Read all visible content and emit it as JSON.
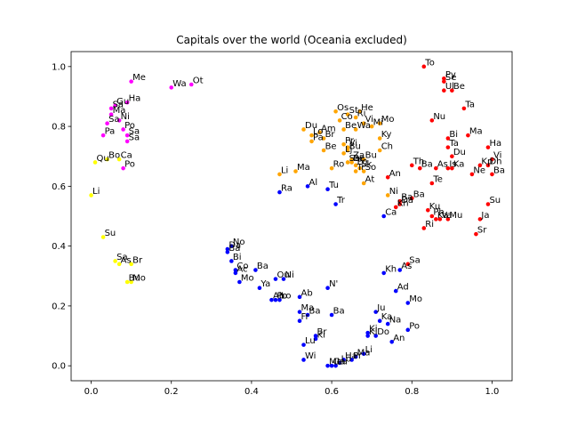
{
  "chart_data": {
    "type": "scatter",
    "title": "Capitals over the world (Oceania excluded)",
    "xlabel": "",
    "ylabel": "",
    "xlim": [
      -0.05,
      1.05
    ],
    "ylim": [
      -0.05,
      1.05
    ],
    "xticks": [
      {
        "v": 0.0,
        "label": "0.0"
      },
      {
        "v": 0.2,
        "label": "0.2"
      },
      {
        "v": 0.4,
        "label": "0.4"
      },
      {
        "v": 0.6,
        "label": "0.6"
      },
      {
        "v": 0.8,
        "label": "0.8"
      },
      {
        "v": 1.0,
        "label": "1.0"
      }
    ],
    "yticks": [
      {
        "v": 0.0,
        "label": "0.0"
      },
      {
        "v": 0.2,
        "label": "0.2"
      },
      {
        "v": 0.4,
        "label": "0.4"
      },
      {
        "v": 0.6,
        "label": "0.6"
      },
      {
        "v": 0.8,
        "label": "0.8"
      },
      {
        "v": 1.0,
        "label": "1.0"
      }
    ],
    "grid": false,
    "colors": {
      "magenta": "#ff00ff",
      "yellow": "#ffff00",
      "orange": "#ffa500",
      "blue": "#0000ff",
      "red": "#ff0000"
    },
    "points": [
      {
        "x": 0.1,
        "y": 0.95,
        "label": "Me",
        "c": "magenta"
      },
      {
        "x": 0.09,
        "y": 0.88,
        "label": "Ha",
        "c": "magenta"
      },
      {
        "x": 0.06,
        "y": 0.87,
        "label": "Gu",
        "c": "magenta"
      },
      {
        "x": 0.05,
        "y": 0.86,
        "label": "Sa",
        "c": "magenta"
      },
      {
        "x": 0.05,
        "y": 0.84,
        "label": "Ma",
        "c": "magenta"
      },
      {
        "x": 0.07,
        "y": 0.82,
        "label": "Ni",
        "c": "magenta"
      },
      {
        "x": 0.04,
        "y": 0.81,
        "label": "Sa",
        "c": "magenta"
      },
      {
        "x": 0.08,
        "y": 0.79,
        "label": "Po",
        "c": "magenta"
      },
      {
        "x": 0.03,
        "y": 0.77,
        "label": "Pa",
        "c": "magenta"
      },
      {
        "x": 0.09,
        "y": 0.77,
        "label": "Sa",
        "c": "magenta"
      },
      {
        "x": 0.09,
        "y": 0.75,
        "label": "Sa",
        "c": "magenta"
      },
      {
        "x": 0.08,
        "y": 0.66,
        "label": "Po",
        "c": "magenta"
      },
      {
        "x": 0.2,
        "y": 0.93,
        "label": "Wa",
        "c": "magenta"
      },
      {
        "x": 0.25,
        "y": 0.94,
        "label": "Ot",
        "c": "magenta"
      },
      {
        "x": 0.04,
        "y": 0.69,
        "label": "Bo",
        "c": "yellow"
      },
      {
        "x": 0.07,
        "y": 0.69,
        "label": "Ca",
        "c": "yellow"
      },
      {
        "x": 0.01,
        "y": 0.68,
        "label": "Qu",
        "c": "yellow"
      },
      {
        "x": 0.0,
        "y": 0.57,
        "label": "Li",
        "c": "yellow"
      },
      {
        "x": 0.03,
        "y": 0.43,
        "label": "Su",
        "c": "yellow"
      },
      {
        "x": 0.06,
        "y": 0.35,
        "label": "Sa",
        "c": "yellow"
      },
      {
        "x": 0.07,
        "y": 0.34,
        "label": "As",
        "c": "yellow"
      },
      {
        "x": 0.1,
        "y": 0.34,
        "label": "Br",
        "c": "yellow"
      },
      {
        "x": 0.09,
        "y": 0.28,
        "label": "Bu",
        "c": "yellow"
      },
      {
        "x": 0.1,
        "y": 0.28,
        "label": "Mo",
        "c": "yellow"
      },
      {
        "x": 0.61,
        "y": 0.85,
        "label": "Os",
        "c": "orange"
      },
      {
        "x": 0.64,
        "y": 0.84,
        "label": "St",
        "c": "orange"
      },
      {
        "x": 0.67,
        "y": 0.85,
        "label": "He",
        "c": "orange"
      },
      {
        "x": 0.66,
        "y": 0.83,
        "label": "Ri",
        "c": "orange"
      },
      {
        "x": 0.62,
        "y": 0.82,
        "label": "Co",
        "c": "orange"
      },
      {
        "x": 0.68,
        "y": 0.81,
        "label": "Vi",
        "c": "orange"
      },
      {
        "x": 0.63,
        "y": 0.79,
        "label": "Be",
        "c": "orange"
      },
      {
        "x": 0.66,
        "y": 0.79,
        "label": "Wa",
        "c": "orange"
      },
      {
        "x": 0.7,
        "y": 0.8,
        "label": "Mi",
        "c": "orange"
      },
      {
        "x": 0.72,
        "y": 0.81,
        "label": "Mo",
        "c": "orange"
      },
      {
        "x": 0.53,
        "y": 0.79,
        "label": "Du",
        "c": "orange"
      },
      {
        "x": 0.57,
        "y": 0.78,
        "label": "Am",
        "c": "orange"
      },
      {
        "x": 0.55,
        "y": 0.77,
        "label": "Lo",
        "c": "orange"
      },
      {
        "x": 0.58,
        "y": 0.76,
        "label": "Br",
        "c": "orange"
      },
      {
        "x": 0.55,
        "y": 0.75,
        "label": "Pa",
        "c": "orange"
      },
      {
        "x": 0.58,
        "y": 0.72,
        "label": "Be",
        "c": "orange"
      },
      {
        "x": 0.63,
        "y": 0.74,
        "label": "Pr",
        "c": "orange"
      },
      {
        "x": 0.64,
        "y": 0.73,
        "label": "Vi",
        "c": "orange"
      },
      {
        "x": 0.64,
        "y": 0.72,
        "label": "Bu",
        "c": "orange"
      },
      {
        "x": 0.72,
        "y": 0.76,
        "label": "Ky",
        "c": "orange"
      },
      {
        "x": 0.72,
        "y": 0.72,
        "label": "Ch",
        "c": "orange"
      },
      {
        "x": 0.63,
        "y": 0.71,
        "label": "Lj",
        "c": "orange"
      },
      {
        "x": 0.65,
        "y": 0.69,
        "label": "Za",
        "c": "orange"
      },
      {
        "x": 0.65,
        "y": 0.68,
        "label": "Be",
        "c": "orange"
      },
      {
        "x": 0.68,
        "y": 0.69,
        "label": "Bu",
        "c": "orange"
      },
      {
        "x": 0.64,
        "y": 0.68,
        "label": "Sa",
        "c": "orange"
      },
      {
        "x": 0.66,
        "y": 0.67,
        "label": "Po",
        "c": "orange"
      },
      {
        "x": 0.67,
        "y": 0.66,
        "label": "Sk",
        "c": "orange"
      },
      {
        "x": 0.66,
        "y": 0.65,
        "label": "Tr",
        "c": "orange"
      },
      {
        "x": 0.6,
        "y": 0.66,
        "label": "Ro",
        "c": "orange"
      },
      {
        "x": 0.68,
        "y": 0.65,
        "label": "So",
        "c": "orange"
      },
      {
        "x": 0.47,
        "y": 0.64,
        "label": "Li",
        "c": "orange"
      },
      {
        "x": 0.51,
        "y": 0.65,
        "label": "Ma",
        "c": "orange"
      },
      {
        "x": 0.68,
        "y": 0.61,
        "label": "At",
        "c": "orange"
      },
      {
        "x": 0.74,
        "y": 0.57,
        "label": "Ni",
        "c": "orange"
      },
      {
        "x": 0.74,
        "y": 0.63,
        "label": "An",
        "c": "red"
      },
      {
        "x": 0.83,
        "y": 1.0,
        "label": "To",
        "c": "red"
      },
      {
        "x": 0.88,
        "y": 0.96,
        "label": "Py",
        "c": "red"
      },
      {
        "x": 0.88,
        "y": 0.95,
        "label": "Se",
        "c": "red"
      },
      {
        "x": 0.88,
        "y": 0.92,
        "label": "Ul",
        "c": "red"
      },
      {
        "x": 0.9,
        "y": 0.92,
        "label": "Be",
        "c": "red"
      },
      {
        "x": 0.93,
        "y": 0.86,
        "label": "Ta",
        "c": "red"
      },
      {
        "x": 0.85,
        "y": 0.82,
        "label": "Nu",
        "c": "red"
      },
      {
        "x": 0.94,
        "y": 0.77,
        "label": "Ma",
        "c": "red"
      },
      {
        "x": 0.89,
        "y": 0.76,
        "label": "Bi",
        "c": "red"
      },
      {
        "x": 0.89,
        "y": 0.73,
        "label": "Ta",
        "c": "red"
      },
      {
        "x": 0.99,
        "y": 0.73,
        "label": "Ha",
        "c": "red"
      },
      {
        "x": 0.9,
        "y": 0.7,
        "label": "Du",
        "c": "red"
      },
      {
        "x": 1.0,
        "y": 0.69,
        "label": "Vi",
        "c": "red"
      },
      {
        "x": 0.8,
        "y": 0.67,
        "label": "Th",
        "c": "red"
      },
      {
        "x": 0.82,
        "y": 0.66,
        "label": "Ba",
        "c": "red"
      },
      {
        "x": 0.86,
        "y": 0.66,
        "label": "As",
        "c": "red"
      },
      {
        "x": 0.89,
        "y": 0.66,
        "label": "Is",
        "c": "red"
      },
      {
        "x": 0.9,
        "y": 0.66,
        "label": "Ka",
        "c": "red"
      },
      {
        "x": 0.97,
        "y": 0.67,
        "label": "Kp",
        "c": "red"
      },
      {
        "x": 0.99,
        "y": 0.67,
        "label": "Dh",
        "c": "red"
      },
      {
        "x": 0.95,
        "y": 0.64,
        "label": "Ne",
        "c": "red"
      },
      {
        "x": 1.0,
        "y": 0.64,
        "label": "Ba",
        "c": "red"
      },
      {
        "x": 0.85,
        "y": 0.61,
        "label": "Te",
        "c": "red"
      },
      {
        "x": 0.8,
        "y": 0.56,
        "label": "Ba",
        "c": "red"
      },
      {
        "x": 0.77,
        "y": 0.55,
        "label": "Ba",
        "c": "red"
      },
      {
        "x": 0.77,
        "y": 0.54,
        "label": "Da",
        "c": "red"
      },
      {
        "x": 0.76,
        "y": 0.53,
        "label": "Kh",
        "c": "red"
      },
      {
        "x": 0.84,
        "y": 0.52,
        "label": "Ku",
        "c": "red"
      },
      {
        "x": 0.85,
        "y": 0.5,
        "label": "Ph",
        "c": "red"
      },
      {
        "x": 0.86,
        "y": 0.49,
        "label": "Ka",
        "c": "red"
      },
      {
        "x": 0.87,
        "y": 0.49,
        "label": "Va",
        "c": "red"
      },
      {
        "x": 0.89,
        "y": 0.49,
        "label": "Mu",
        "c": "red"
      },
      {
        "x": 0.83,
        "y": 0.46,
        "label": "Ri",
        "c": "red"
      },
      {
        "x": 0.99,
        "y": 0.54,
        "label": "Su",
        "c": "red"
      },
      {
        "x": 0.97,
        "y": 0.49,
        "label": "Ja",
        "c": "red"
      },
      {
        "x": 0.96,
        "y": 0.44,
        "label": "Sr",
        "c": "red"
      },
      {
        "x": 0.79,
        "y": 0.34,
        "label": "Sa",
        "c": "red"
      },
      {
        "x": 0.73,
        "y": 0.5,
        "label": "Ca",
        "c": "blue"
      },
      {
        "x": 0.54,
        "y": 0.6,
        "label": "Al",
        "c": "blue"
      },
      {
        "x": 0.59,
        "y": 0.59,
        "label": "Tu",
        "c": "blue"
      },
      {
        "x": 0.47,
        "y": 0.58,
        "label": "Ra",
        "c": "blue"
      },
      {
        "x": 0.61,
        "y": 0.54,
        "label": "Tr",
        "c": "blue"
      },
      {
        "x": 0.35,
        "y": 0.4,
        "label": "No",
        "c": "blue"
      },
      {
        "x": 0.34,
        "y": 0.39,
        "label": "Da",
        "c": "blue"
      },
      {
        "x": 0.34,
        "y": 0.38,
        "label": "Ba",
        "c": "blue"
      },
      {
        "x": 0.35,
        "y": 0.35,
        "label": "Bi",
        "c": "blue"
      },
      {
        "x": 0.36,
        "y": 0.32,
        "label": "Co",
        "c": "blue"
      },
      {
        "x": 0.36,
        "y": 0.31,
        "label": "Ac",
        "c": "blue"
      },
      {
        "x": 0.41,
        "y": 0.32,
        "label": "Ba",
        "c": "blue"
      },
      {
        "x": 0.37,
        "y": 0.28,
        "label": "Mo",
        "c": "blue"
      },
      {
        "x": 0.42,
        "y": 0.26,
        "label": "Ya",
        "c": "blue"
      },
      {
        "x": 0.46,
        "y": 0.29,
        "label": "Ou",
        "c": "blue"
      },
      {
        "x": 0.48,
        "y": 0.29,
        "label": "Ni",
        "c": "blue"
      },
      {
        "x": 0.45,
        "y": 0.22,
        "label": "Ab",
        "c": "blue"
      },
      {
        "x": 0.47,
        "y": 0.22,
        "label": "Lo",
        "c": "blue"
      },
      {
        "x": 0.46,
        "y": 0.22,
        "label": "Po",
        "c": "blue"
      },
      {
        "x": 0.52,
        "y": 0.23,
        "label": "Ab",
        "c": "blue"
      },
      {
        "x": 0.59,
        "y": 0.26,
        "label": "N'",
        "c": "blue"
      },
      {
        "x": 0.52,
        "y": 0.18,
        "label": "Ma",
        "c": "blue"
      },
      {
        "x": 0.54,
        "y": 0.17,
        "label": "Ba",
        "c": "blue"
      },
      {
        "x": 0.6,
        "y": 0.17,
        "label": "Ba",
        "c": "blue"
      },
      {
        "x": 0.52,
        "y": 0.15,
        "label": "Fr",
        "c": "blue"
      },
      {
        "x": 0.56,
        "y": 0.1,
        "label": "Br",
        "c": "blue"
      },
      {
        "x": 0.56,
        "y": 0.09,
        "label": "Ki",
        "c": "blue"
      },
      {
        "x": 0.53,
        "y": 0.07,
        "label": "Lu",
        "c": "blue"
      },
      {
        "x": 0.53,
        "y": 0.02,
        "label": "Wi",
        "c": "blue"
      },
      {
        "x": 0.71,
        "y": 0.18,
        "label": "Ju",
        "c": "blue"
      },
      {
        "x": 0.72,
        "y": 0.15,
        "label": "Ka",
        "c": "blue"
      },
      {
        "x": 0.74,
        "y": 0.14,
        "label": "Na",
        "c": "blue"
      },
      {
        "x": 0.69,
        "y": 0.11,
        "label": "Ki",
        "c": "blue"
      },
      {
        "x": 0.69,
        "y": 0.1,
        "label": "Ki",
        "c": "blue"
      },
      {
        "x": 0.71,
        "y": 0.1,
        "label": "Do",
        "c": "blue"
      },
      {
        "x": 0.75,
        "y": 0.08,
        "label": "An",
        "c": "blue"
      },
      {
        "x": 0.79,
        "y": 0.12,
        "label": "Po",
        "c": "blue"
      },
      {
        "x": 0.76,
        "y": 0.25,
        "label": "Ad",
        "c": "blue"
      },
      {
        "x": 0.79,
        "y": 0.21,
        "label": "Mo",
        "c": "blue"
      },
      {
        "x": 0.73,
        "y": 0.31,
        "label": "Kh",
        "c": "blue"
      },
      {
        "x": 0.77,
        "y": 0.32,
        "label": "As",
        "c": "blue"
      },
      {
        "x": 0.59,
        "y": 0.0,
        "label": "Ma",
        "c": "blue"
      },
      {
        "x": 0.6,
        "y": 0.0,
        "label": "Ga",
        "c": "blue"
      },
      {
        "x": 0.61,
        "y": 0.0,
        "label": "Lu",
        "c": "blue"
      },
      {
        "x": 0.62,
        "y": 0.01,
        "label": "Lo",
        "c": "blue"
      },
      {
        "x": 0.63,
        "y": 0.02,
        "label": "Ha",
        "c": "blue"
      },
      {
        "x": 0.65,
        "y": 0.02,
        "label": "Pr",
        "c": "blue"
      },
      {
        "x": 0.66,
        "y": 0.03,
        "label": "Ma",
        "c": "blue"
      },
      {
        "x": 0.68,
        "y": 0.04,
        "label": "Li",
        "c": "blue"
      }
    ]
  }
}
